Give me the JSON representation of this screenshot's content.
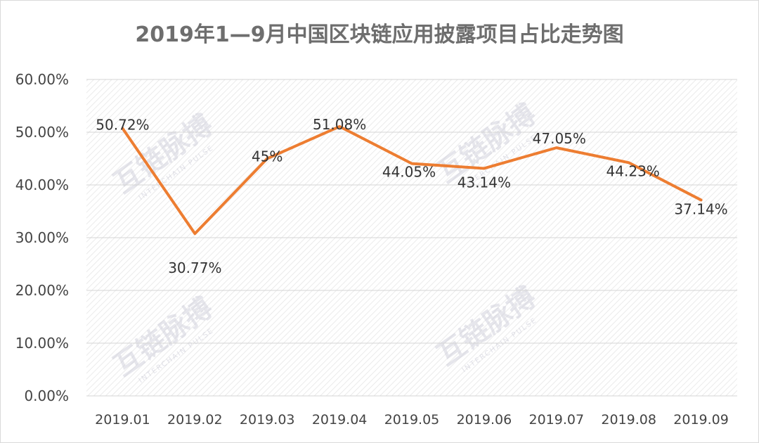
{
  "chart_data": {
    "type": "line",
    "title": "2019年1—9月中国区块链应用披露项目占比走势图",
    "categories": [
      "2019.01",
      "2019.02",
      "2019.03",
      "2019.04",
      "2019.05",
      "2019.06",
      "2019.07",
      "2019.08",
      "2019.09"
    ],
    "series": [
      {
        "values": [
          50.72,
          30.77,
          45,
          51.08,
          44.05,
          43.14,
          47.05,
          44.23,
          37.14
        ]
      }
    ],
    "data_labels": [
      "50.72%",
      "30.77%",
      "45%",
      "51.08%",
      "44.05%",
      "43.14%",
      "47.05%",
      "44.23%",
      "37.14%"
    ],
    "y_ticks": [
      "0.00%",
      "10.00%",
      "20.00%",
      "30.00%",
      "40.00%",
      "50.00%",
      "60.00%"
    ],
    "ylim": [
      0,
      60
    ],
    "grid": true,
    "line_color": "#ed7d31"
  },
  "watermark": {
    "brand": "互链脉搏",
    "tagline": "INTERCHAIN PULSE"
  }
}
